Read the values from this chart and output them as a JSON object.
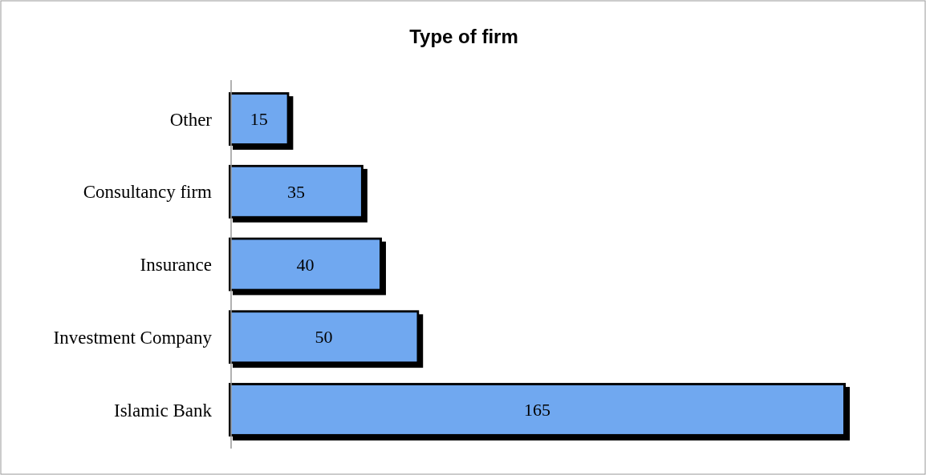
{
  "chart_data": {
    "type": "bar",
    "title": "Type of firm",
    "orientation": "horizontal",
    "categories": [
      "Other",
      "Consultancy firm",
      "Insurance",
      "Investment Company",
      "Islamic Bank"
    ],
    "values": [
      15,
      35,
      40,
      50,
      165
    ],
    "color": "#6fa8f0",
    "data_labels": true
  }
}
